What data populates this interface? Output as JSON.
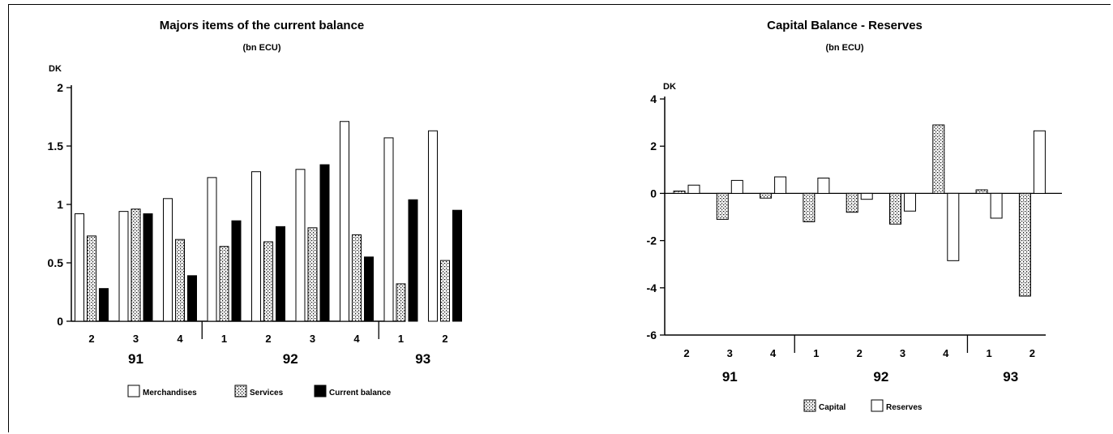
{
  "chart_data": [
    {
      "type": "bar",
      "title": "Majors items of the current balance",
      "subtitle": "(bn ECU)",
      "unit_label": "DK",
      "ylim": [
        0,
        2
      ],
      "yticks": [
        "0",
        "0.5",
        "1",
        "1.5",
        "2"
      ],
      "categories": [
        "2",
        "3",
        "4",
        "1",
        "2",
        "3",
        "4",
        "1",
        "2"
      ],
      "year_groups": [
        {
          "label": "91",
          "count": 3
        },
        {
          "label": "92",
          "count": 4
        },
        {
          "label": "93",
          "count": 2
        }
      ],
      "series": [
        {
          "name": "Merchandises",
          "fill": "white",
          "values": [
            0.92,
            0.94,
            1.05,
            1.23,
            1.28,
            1.3,
            1.71,
            1.57,
            1.63
          ]
        },
        {
          "name": "Services",
          "fill": "hatch",
          "values": [
            0.73,
            0.96,
            0.7,
            0.64,
            0.68,
            0.8,
            0.74,
            0.32,
            0.52
          ]
        },
        {
          "name": "Current balance",
          "fill": "black",
          "values": [
            0.28,
            0.92,
            0.39,
            0.86,
            0.81,
            1.34,
            0.55,
            1.04,
            0.95
          ]
        }
      ],
      "legend_position": "bottom"
    },
    {
      "type": "bar",
      "title": "Capital Balance - Reserves",
      "subtitle": "(bn ECU)",
      "unit_label": "DK",
      "ylim": [
        -6,
        4
      ],
      "yticks": [
        "-6",
        "-4",
        "-2",
        "0",
        "2",
        "4"
      ],
      "categories": [
        "2",
        "3",
        "4",
        "1",
        "2",
        "3",
        "4",
        "1",
        "2"
      ],
      "year_groups": [
        {
          "label": "91",
          "count": 3
        },
        {
          "label": "92",
          "count": 4
        },
        {
          "label": "93",
          "count": 2
        }
      ],
      "series": [
        {
          "name": "Capital",
          "fill": "hatch",
          "values": [
            0.1,
            -1.1,
            -0.2,
            -1.2,
            -0.8,
            -1.3,
            2.9,
            0.15,
            -4.35
          ]
        },
        {
          "name": "Reserves",
          "fill": "white",
          "values": [
            0.35,
            0.55,
            0.7,
            0.65,
            -0.25,
            -0.75,
            -2.85,
            -1.05,
            2.65
          ]
        }
      ],
      "legend_position": "bottom"
    }
  ]
}
